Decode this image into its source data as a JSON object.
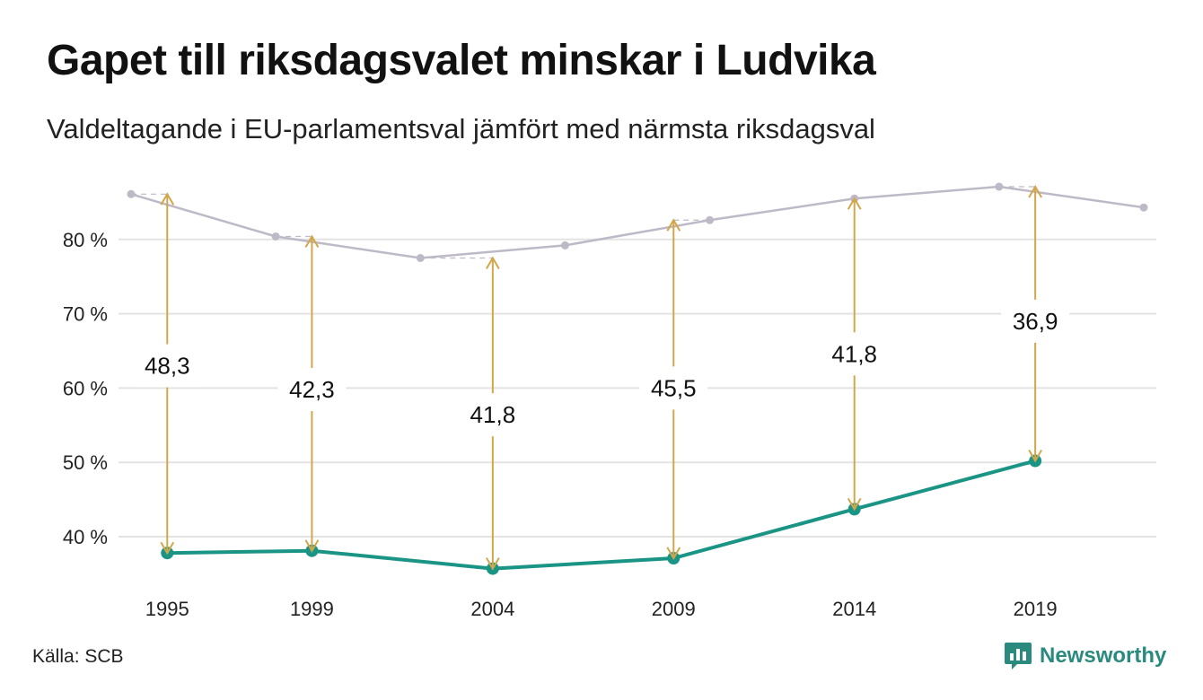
{
  "title": "Gapet till riksdagsvalet minskar i Ludvika",
  "subtitle": "Valdeltagande i EU-parlamentsval jämfört med närmsta riksdagsval",
  "source": "Källa: SCB",
  "brand": {
    "name": "Newsworthy",
    "icon": "bar-chart-speech-bubble-icon"
  },
  "colors": {
    "eu_line": "#1a9585",
    "riksdag_line": "#bdb9c7",
    "arrow": "#d2a64b",
    "grid": "#e3e3e3",
    "brand": "#2a8a7e"
  },
  "chart_data": {
    "type": "line",
    "ylim": [
      34,
      88
    ],
    "y_ticks": [
      {
        "value": 40,
        "label": "40 %"
      },
      {
        "value": 50,
        "label": "50 %"
      },
      {
        "value": 60,
        "label": "60 %"
      },
      {
        "value": 70,
        "label": "70 %"
      },
      {
        "value": 80,
        "label": "80 %"
      }
    ],
    "x_ticks": [
      "1995",
      "1999",
      "2004",
      "2009",
      "2014",
      "2019"
    ],
    "series": [
      {
        "key": "riksdag",
        "x": [
          1994,
          1998,
          2002,
          2006,
          2010,
          2014,
          2018,
          2022
        ],
        "values": [
          86.1,
          80.4,
          77.5,
          79.2,
          82.6,
          85.5,
          87.1,
          84.3
        ]
      },
      {
        "key": "eu",
        "x": [
          1995,
          1999,
          2004,
          2009,
          2014,
          2019
        ],
        "values": [
          37.8,
          38.1,
          35.7,
          37.1,
          43.7,
          50.2
        ]
      }
    ],
    "gaps": [
      {
        "year": 1995,
        "from": 37.8,
        "to": 86.1,
        "label": "48,3",
        "label_at": 63.0
      },
      {
        "year": 1999,
        "from": 38.1,
        "to": 80.4,
        "label": "42,3",
        "label_at": 59.8
      },
      {
        "year": 2004,
        "from": 35.7,
        "to": 77.5,
        "label": "41,8",
        "label_at": 56.4
      },
      {
        "year": 2009,
        "from": 37.1,
        "to": 82.6,
        "label": "45,5",
        "label_at": 60.0
      },
      {
        "year": 2014,
        "from": 43.7,
        "to": 85.5,
        "label": "41,8",
        "label_at": 64.6
      },
      {
        "year": 2019,
        "from": 50.2,
        "to": 87.1,
        "label": "36,9",
        "label_at": 69.0
      }
    ]
  }
}
